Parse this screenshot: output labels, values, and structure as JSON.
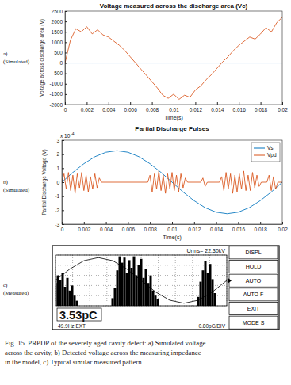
{
  "chart_data": [
    {
      "type": "line",
      "title": "Voltage measured across the discharge area (Vc)",
      "xlabel": "Time(s)",
      "ylabel": "Voltage across discharge area (V)",
      "annotations": [
        "a)",
        "(Simulated)"
      ],
      "x": [
        0,
        0.0005,
        0.001,
        0.0015,
        0.002,
        0.0025,
        0.003,
        0.0035,
        0.004,
        0.0045,
        0.005,
        0.0055,
        0.006,
        0.0065,
        0.007,
        0.0075,
        0.008,
        0.0085,
        0.009,
        0.0095,
        0.01,
        0.0105,
        0.011,
        0.0115,
        0.012,
        0.0125,
        0.013,
        0.0135,
        0.014,
        0.0145,
        0.015,
        0.0155,
        0.016,
        0.0165,
        0.017,
        0.0175,
        0.018,
        0.0185,
        0.019,
        0.0195,
        0.02
      ],
      "series": [
        {
          "color": "#d95319",
          "values": [
            0,
            1100,
            1650,
            1500,
            1750,
            1400,
            1600,
            1350,
            1250,
            1050,
            850,
            600,
            300,
            0,
            -300,
            -600,
            -900,
            -1200,
            -1550,
            -1700,
            -1500,
            -1750,
            -1550,
            -1650,
            -1300,
            -1100,
            -800,
            -550,
            -250,
            50,
            300,
            600,
            850,
            1050,
            1250,
            1150,
            1400,
            1700,
            1500,
            1950,
            2200
          ]
        },
        {
          "color": "#0072bd",
          "values": [
            0,
            0,
            0,
            0,
            0,
            0,
            0,
            0,
            0,
            0,
            0,
            0,
            0,
            0,
            0,
            0,
            0,
            0,
            0,
            0,
            0,
            0,
            0,
            0,
            0,
            0,
            0,
            0,
            0,
            0,
            0,
            0,
            0,
            0,
            0,
            0,
            0,
            0,
            0,
            0,
            0
          ]
        }
      ],
      "xlim": [
        0,
        0.02
      ],
      "ylim": [
        -2000,
        2500
      ],
      "xticks": [
        0,
        0.002,
        0.004,
        0.006,
        0.008,
        0.01,
        0.012,
        0.014,
        0.016,
        0.018,
        0.02
      ],
      "yticks": [
        -2000,
        -1500,
        -1000,
        -500,
        0,
        500,
        1000,
        1500,
        2000,
        2500
      ],
      "grid": false
    },
    {
      "type": "line",
      "title": "Partial Discharge Pulses",
      "xlabel": "Time(s)",
      "ylabel": "Partial Discharge Voltage (V)",
      "annotations": [
        "b)",
        "(Simulated)",
        "x 10",
        "-4"
      ],
      "series": [
        {
          "name": "Vs",
          "color": "#0072bd",
          "x": [
            0,
            0.001,
            0.002,
            0.003,
            0.004,
            0.005,
            0.006,
            0.007,
            0.008,
            0.009,
            0.01,
            0.011,
            0.012,
            0.013,
            0.014,
            0.015,
            0.016,
            0.017,
            0.018,
            0.019,
            0.02
          ],
          "values": [
            0,
            0.7,
            1.32,
            1.82,
            2.14,
            2.25,
            2.14,
            1.82,
            1.32,
            0.7,
            0,
            -0.7,
            -1.32,
            -1.82,
            -2.14,
            -2.25,
            -2.14,
            -1.82,
            -1.32,
            -0.7,
            0
          ]
        },
        {
          "name": "Vpd",
          "color": "#d95319",
          "x": [
            0,
            0.0002,
            0.0004,
            0.0006,
            0.0008,
            0.001,
            0.0012,
            0.0014,
            0.0016,
            0.0018,
            0.002,
            0.0022,
            0.0024,
            0.0026,
            0.0028,
            0.003,
            0.0032,
            0.0034,
            0.0036,
            0.0078,
            0.008,
            0.0082,
            0.0084,
            0.0086,
            0.0088,
            0.009,
            0.0092,
            0.0094,
            0.0096,
            0.0098,
            0.01,
            0.0102,
            0.0104,
            0.0106,
            0.0108,
            0.011,
            0.0112,
            0.0114,
            0.0126,
            0.0128,
            0.013,
            0.0132,
            0.0143,
            0.0145,
            0.0147,
            0.0149,
            0.0151,
            0.0153,
            0.0155,
            0.0157,
            0.0159,
            0.0161,
            0.0163,
            0.0165,
            0.0167,
            0.0169,
            0.0171,
            0.0173,
            0.0175,
            0.0177,
            0.0179,
            0.0181,
            0.0186,
            0.0188,
            0.019,
            0.0192,
            0.0194,
            0.0196,
            0.02
          ],
          "values": [
            0,
            0.6,
            -0.5,
            0.7,
            -0.6,
            0.5,
            -0.8,
            0.6,
            -0.4,
            0.7,
            -0.6,
            0.5,
            -0.7,
            0.4,
            -0.5,
            0.6,
            -0.4,
            0.3,
            0,
            0,
            0.5,
            -0.7,
            0.6,
            -0.5,
            0.8,
            -0.6,
            0.5,
            -0.8,
            0.6,
            -0.5,
            0.7,
            -0.6,
            0.5,
            -0.7,
            0.6,
            -0.4,
            0.3,
            0,
            0,
            0.3,
            -0.3,
            0,
            0,
            0.4,
            -0.6,
            0.7,
            -0.5,
            0.6,
            -0.8,
            0.5,
            -0.7,
            0.6,
            -0.5,
            0.8,
            -0.6,
            0.5,
            -0.6,
            0.7,
            -0.4,
            0.5,
            -0.3,
            0,
            0,
            0.5,
            -0.6,
            0.4,
            -0.5,
            0,
            0
          ]
        }
      ],
      "xlim": [
        0,
        0.02
      ],
      "ylim": [
        -3,
        3
      ],
      "xticks": [
        0,
        0.002,
        0.004,
        0.006,
        0.008,
        0.01,
        0.012,
        0.014,
        0.016,
        0.018,
        0.02
      ],
      "yticks": [
        -3,
        -2,
        -1,
        0,
        1,
        2,
        3
      ],
      "legend": "upper-right",
      "grid": false
    },
    {
      "type": "bar",
      "annotations": [
        "c)",
        "(Measured)",
        "Urms= 22.30kV",
        "3.53pC",
        "49.9Hz EXT",
        "0.80pC/DIV",
        "DISPL",
        "HOLD",
        "AUTO",
        "AUTO F",
        "EXIT",
        "MODE S"
      ],
      "series": [
        {
          "type": "bar",
          "color": "#000000",
          "x": [
            0,
            5,
            10,
            15,
            20,
            25,
            30,
            35,
            40,
            45,
            120,
            125,
            130,
            135,
            140,
            145,
            150,
            155,
            160,
            165,
            170,
            175,
            180,
            185,
            190,
            195,
            200,
            205,
            210,
            215,
            300,
            305,
            310,
            315,
            320,
            325,
            330,
            335
          ],
          "values": [
            1.8,
            2.4,
            2.0,
            2.6,
            1.5,
            2.2,
            1.2,
            1.6,
            0.8,
            0.4,
            0.6,
            1.4,
            2.8,
            3.9,
            3.4,
            3.8,
            2.6,
            3.6,
            3.0,
            3.9,
            2.4,
            3.2,
            3.7,
            2.2,
            2.9,
            1.8,
            2.4,
            1.2,
            0.8,
            0.5,
            0.7,
            1.9,
            2.8,
            3.5,
            2.6,
            3.3,
            2.1,
            1.0
          ]
        },
        {
          "type": "line",
          "color": "#000000",
          "x": [
            0,
            30,
            60,
            90,
            120,
            150,
            180,
            210,
            240,
            270,
            300,
            330,
            360
          ],
          "values": [
            2.0,
            2.9,
            3.56,
            3.8,
            3.56,
            2.9,
            2.0,
            1.1,
            0.44,
            0.2,
            0.44,
            1.1,
            2.0
          ]
        }
      ],
      "xlim": [
        0,
        360
      ],
      "ylim": [
        0,
        4
      ],
      "xticks": [
        0,
        36,
        72,
        108,
        144,
        180,
        216,
        252,
        288,
        324,
        360
      ],
      "yticks": [
        0,
        0.8,
        1.6,
        2.4,
        3.2,
        4
      ],
      "tick_labels": false,
      "grid": true
    }
  ],
  "caption": [
    "Fig. 15. PRPDP of the severely aged cavity defect: a) Simulated voltage",
    "across the cavity, b) Detected voltage across the measuring impedance",
    "in the model, c) Typical similar measured pattern"
  ]
}
